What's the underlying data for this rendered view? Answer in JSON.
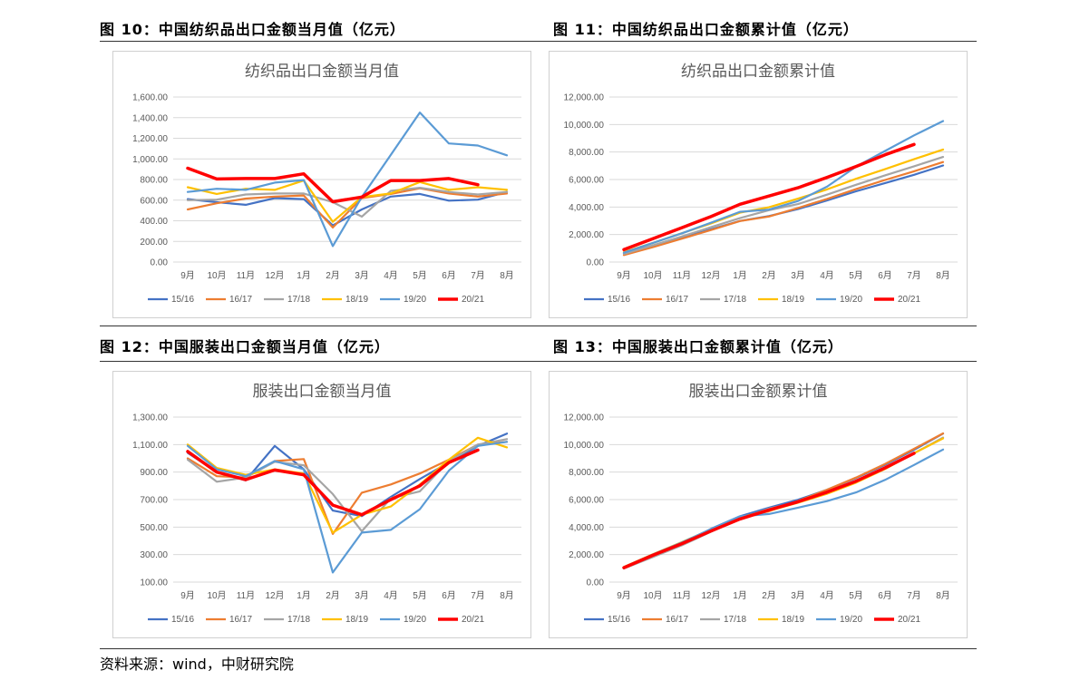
{
  "headings": {
    "fig10": "图 10：中国纺织品出口金额当月值（亿元）",
    "fig11": "图 11：中国纺织品出口金额累计值（亿元）",
    "fig12": "图 12：中国服装出口金额当月值（亿元）",
    "fig13": "图 13：中国服装出口金额累计值（亿元）"
  },
  "source": "资料来源：wind，中财研究院",
  "colors": {
    "15/16": "#4472C4",
    "16/17": "#ED7D31",
    "17/18": "#A5A5A5",
    "18/19": "#FFC000",
    "19/20": "#5B9BD5",
    "20/21": "#FF0000"
  },
  "chart_data": [
    {
      "id": "fig10",
      "type": "line",
      "title": "纺织品出口金额当月值",
      "categories": [
        "9月",
        "10月",
        "11月",
        "12月",
        "1月",
        "2月",
        "3月",
        "4月",
        "5月",
        "6月",
        "7月",
        "8月"
      ],
      "ylim": [
        0,
        1600
      ],
      "yticks": [
        "0.00",
        "200.00",
        "400.00",
        "600.00",
        "800.00",
        "1,000.00",
        "1,200.00",
        "1,400.00",
        "1,600.00"
      ],
      "grid": true,
      "legend_position": "bottom",
      "series": [
        {
          "name": "15/16",
          "values": [
            610,
            580,
            555,
            620,
            610,
            355,
            510,
            635,
            660,
            595,
            605,
            680
          ]
        },
        {
          "name": "16/17",
          "values": [
            510,
            570,
            615,
            635,
            645,
            335,
            620,
            660,
            715,
            665,
            635,
            665
          ]
        },
        {
          "name": "17/18",
          "values": [
            600,
            605,
            655,
            665,
            665,
            580,
            440,
            690,
            720,
            680,
            655,
            680
          ]
        },
        {
          "name": "18/19",
          "values": [
            725,
            660,
            710,
            700,
            790,
            390,
            630,
            665,
            775,
            700,
            725,
            700
          ]
        },
        {
          "name": "19/20",
          "values": [
            680,
            710,
            700,
            770,
            795,
            155,
            630,
            1040,
            1450,
            1150,
            1130,
            1035
          ]
        },
        {
          "name": "20/21",
          "values": [
            910,
            805,
            810,
            810,
            855,
            585,
            630,
            790,
            790,
            810,
            750,
            null
          ]
        }
      ]
    },
    {
      "id": "fig11",
      "type": "line",
      "title": "纺织品出口金额累计值",
      "categories": [
        "9月",
        "10月",
        "11月",
        "12月",
        "1月",
        "2月",
        "3月",
        "4月",
        "5月",
        "6月",
        "7月",
        "8月"
      ],
      "ylim": [
        0,
        12000
      ],
      "yticks": [
        "0.00",
        "2,000.00",
        "4,000.00",
        "6,000.00",
        "8,000.00",
        "10,000.00",
        "12,000.00"
      ],
      "grid": true,
      "legend_position": "bottom",
      "series": [
        {
          "name": "15/16",
          "values": [
            620,
            1200,
            1760,
            2380,
            2990,
            3340,
            3850,
            4480,
            5140,
            5740,
            6340,
            7020
          ]
        },
        {
          "name": "16/17",
          "values": [
            510,
            1080,
            1700,
            2330,
            2980,
            3310,
            3930,
            4590,
            5300,
            5970,
            6600,
            7270
          ]
        },
        {
          "name": "17/18",
          "values": [
            600,
            1210,
            1860,
            2530,
            3190,
            3770,
            4210,
            4900,
            5620,
            6300,
            6960,
            7640
          ]
        },
        {
          "name": "18/19",
          "values": [
            725,
            1390,
            2100,
            2800,
            3590,
            3980,
            4610,
            5280,
            6050,
            6750,
            7480,
            8180
          ]
        },
        {
          "name": "19/20",
          "values": [
            680,
            1390,
            2090,
            2860,
            3650,
            3810,
            4440,
            5480,
            6930,
            8080,
            9210,
            10250
          ]
        },
        {
          "name": "20/21",
          "values": [
            900,
            1700,
            2500,
            3300,
            4200,
            4800,
            5400,
            6150,
            6950,
            7800,
            8550,
            null
          ]
        }
      ]
    },
    {
      "id": "fig12",
      "type": "line",
      "title": "服装出口金额当月值",
      "categories": [
        "9月",
        "10月",
        "11月",
        "12月",
        "1月",
        "2月",
        "3月",
        "4月",
        "5月",
        "6月",
        "7月",
        "8月"
      ],
      "ylim": [
        100,
        1300
      ],
      "yticks": [
        "100.00",
        "300.00",
        "500.00",
        "700.00",
        "900.00",
        "1,100.00",
        "1,300.00"
      ],
      "grid": true,
      "legend_position": "bottom",
      "series": [
        {
          "name": "15/16",
          "values": [
            1040,
            900,
            840,
            1090,
            920,
            620,
            580,
            720,
            850,
            970,
            1090,
            1180
          ]
        },
        {
          "name": "16/17",
          "values": [
            1000,
            870,
            860,
            980,
            995,
            450,
            750,
            810,
            890,
            990,
            1100,
            1120
          ]
        },
        {
          "name": "17/18",
          "values": [
            990,
            830,
            860,
            975,
            950,
            740,
            470,
            710,
            760,
            980,
            1100,
            1140
          ]
        },
        {
          "name": "18/19",
          "values": [
            1100,
            930,
            880,
            920,
            890,
            460,
            590,
            650,
            810,
            990,
            1150,
            1080
          ]
        },
        {
          "name": "19/20",
          "values": [
            1090,
            920,
            870,
            980,
            920,
            170,
            460,
            480,
            630,
            910,
            1090,
            1120
          ]
        },
        {
          "name": "20/21",
          "values": [
            1050,
            900,
            845,
            915,
            880,
            660,
            590,
            700,
            800,
            970,
            1060,
            null
          ]
        }
      ]
    },
    {
      "id": "fig13",
      "type": "line",
      "title": "服装出口金额累计值",
      "categories": [
        "9月",
        "10月",
        "11月",
        "12月",
        "1月",
        "2月",
        "3月",
        "4月",
        "5月",
        "6月",
        "7月",
        "8月"
      ],
      "ylim": [
        0,
        12000
      ],
      "yticks": [
        "0.00",
        "2,000.00",
        "4,000.00",
        "6,000.00",
        "8,000.00",
        "10,000.00",
        "12,000.00"
      ],
      "grid": true,
      "legend_position": "bottom",
      "series": [
        {
          "name": "15/16",
          "values": [
            1040,
            1940,
            2780,
            3870,
            4790,
            5410,
            5990,
            6710,
            7560,
            8530,
            9620,
            10800
          ]
        },
        {
          "name": "16/17",
          "values": [
            1000,
            1870,
            2730,
            3710,
            4700,
            5150,
            5900,
            6710,
            7600,
            8590,
            9690,
            10810
          ]
        },
        {
          "name": "17/18",
          "values": [
            990,
            1820,
            2680,
            3660,
            4610,
            5350,
            5820,
            6530,
            7290,
            8270,
            9370,
            10510
          ]
        },
        {
          "name": "18/19",
          "values": [
            1100,
            2030,
            2910,
            3830,
            4720,
            5180,
            5770,
            6420,
            7230,
            8220,
            9370,
            10450
          ]
        },
        {
          "name": "19/20",
          "values": [
            1090,
            2010,
            2880,
            3860,
            4780,
            4950,
            5410,
            5890,
            6520,
            7430,
            8520,
            9640
          ]
        },
        {
          "name": "20/21",
          "values": [
            1050,
            1950,
            2795,
            3710,
            4590,
            5250,
            5840,
            6540,
            7340,
            8310,
            9370,
            null
          ]
        }
      ]
    }
  ]
}
